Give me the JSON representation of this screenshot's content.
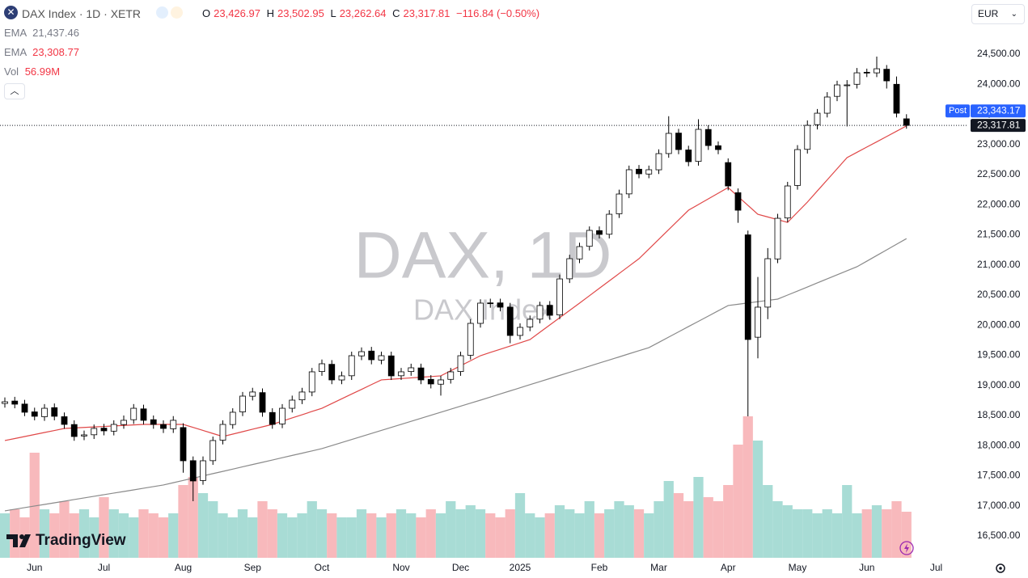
{
  "header": {
    "symbol": "DAX Index · 1D · XETR",
    "ohlc": [
      {
        "key": "O",
        "value": "23,426.97"
      },
      {
        "key": "H",
        "value": "23,502.95"
      },
      {
        "key": "L",
        "value": "23,262.64"
      },
      {
        "key": "C",
        "value": "23,317.81"
      }
    ],
    "change": "−116.84 (−0.50%)"
  },
  "currency": "EUR",
  "watermark": {
    "title": "DAX, 1D",
    "subtitle": "DAX Index"
  },
  "brand": "TradingView",
  "chart_data": {
    "type": "candlestick",
    "categories": [
      null,
      null,
      null,
      "Jun",
      null,
      null,
      null,
      null,
      null,
      null,
      "Jul",
      null,
      null,
      null,
      null,
      null,
      null,
      null,
      "Aug",
      null,
      null,
      null,
      null,
      null,
      null,
      "Sep",
      null,
      null,
      null,
      null,
      null,
      null,
      "Oct",
      null,
      null,
      null,
      null,
      null,
      null,
      null,
      "Nov",
      null,
      null,
      null,
      null,
      null,
      "Dec",
      null,
      null,
      null,
      null,
      null,
      "2025",
      null,
      null,
      null,
      null,
      null,
      null,
      null,
      "Feb",
      null,
      null,
      null,
      null,
      null,
      "Mar",
      null,
      null,
      null,
      null,
      null,
      null,
      "Apr",
      null,
      null,
      null,
      null,
      null,
      null,
      "May",
      null,
      null,
      null,
      null,
      null,
      null,
      "Jun",
      null,
      null,
      null,
      null,
      null,
      null,
      "Jul"
    ],
    "open": [
      18700,
      18740,
      18690,
      18560,
      18480,
      18630,
      18480,
      18350,
      18160,
      18180,
      18290,
      18240,
      18350,
      18430,
      18610,
      18430,
      18350,
      18280,
      18300,
      17750,
      17420,
      17750,
      18090,
      18350,
      18560,
      18820,
      18880,
      18550,
      18360,
      18620,
      18760,
      18890,
      19230,
      19350,
      19090,
      19160,
      19490,
      19570,
      19420,
      19490,
      19160,
      19230,
      19290,
      19100,
      19020,
      19100,
      19230,
      19500,
      20030,
      20370,
      20370,
      20300,
      19830,
      19970,
      20100,
      20330,
      20170,
      20770,
      21100,
      21310,
      21570,
      21510,
      21850,
      22180,
      22590,
      22510,
      22580,
      22850,
      23190,
      22910,
      22720,
      23250,
      22980,
      22700,
      22200,
      21500,
      19800,
      20300,
      21100,
      21780,
      22320,
      22920,
      23330,
      23520,
      23800,
      23990,
      24000,
      24200,
      24190,
      24250,
      24000,
      23426.97,
      null,
      null,
      null
    ],
    "high": [
      18800,
      18810,
      18760,
      18630,
      18690,
      18700,
      18550,
      18420,
      18250,
      18350,
      18360,
      18420,
      18500,
      18690,
      18680,
      18500,
      18420,
      18490,
      18370,
      17820,
      17820,
      18150,
      18420,
      18620,
      18890,
      18960,
      18950,
      18620,
      18690,
      18830,
      18960,
      19290,
      19430,
      19420,
      19230,
      19560,
      19630,
      19640,
      19560,
      19560,
      19290,
      19360,
      19360,
      19170,
      19160,
      19290,
      19560,
      20100,
      20430,
      20440,
      20440,
      20370,
      20030,
      20160,
      20390,
      20400,
      20840,
      21170,
      21370,
      21640,
      21640,
      21910,
      22250,
      22650,
      22660,
      22650,
      22920,
      23470,
      23260,
      22980,
      23420,
      23320,
      23050,
      22770,
      22270,
      21570,
      20800,
      21280,
      21850,
      22380,
      22990,
      23400,
      23590,
      23870,
      24060,
      24070,
      24270,
      24260,
      24460,
      24320,
      24130,
      23502.95,
      null,
      null,
      null
    ],
    "low": [
      18630,
      18620,
      18490,
      18420,
      18410,
      18420,
      18280,
      18080,
      18090,
      18110,
      18170,
      18170,
      18280,
      18360,
      18350,
      18280,
      18210,
      18210,
      17550,
      17077,
      17350,
      17680,
      18020,
      18280,
      18490,
      18750,
      18480,
      18280,
      18290,
      18550,
      18690,
      18820,
      19160,
      19020,
      19020,
      19090,
      19420,
      19350,
      19350,
      19090,
      19090,
      19160,
      19020,
      18950,
      18830,
      19030,
      19160,
      19430,
      19960,
      20290,
      20230,
      19700,
      19760,
      19900,
      20030,
      20090,
      20100,
      20700,
      21030,
      21240,
      21440,
      21440,
      21780,
      22110,
      22440,
      22440,
      22510,
      22780,
      22840,
      22640,
      22650,
      22910,
      22840,
      22240,
      21700,
      18487,
      19450,
      20100,
      21030,
      21710,
      22250,
      22850,
      23250,
      23450,
      23720,
      23300,
      23930,
      24120,
      24120,
      23930,
      23450,
      23262.64,
      null,
      null,
      null
    ],
    "close": [
      18728,
      18688,
      18554,
      18487,
      18620,
      18487,
      18352,
      18151,
      18178,
      18285,
      18245,
      18352,
      18420,
      18620,
      18420,
      18352,
      18285,
      18420,
      17748,
      17413,
      17748,
      18084,
      18352,
      18554,
      18822,
      18890,
      18554,
      18352,
      18620,
      18755,
      18890,
      19225,
      19359,
      19091,
      19158,
      19493,
      19560,
      19426,
      19493,
      19158,
      19225,
      19292,
      19091,
      19024,
      19091,
      19225,
      19493,
      20030,
      20366,
      20366,
      20299,
      19829,
      19963,
      20097,
      20326,
      20164,
      20768,
      21104,
      21305,
      21574,
      21507,
      21842,
      22178,
      22581,
      22514,
      22581,
      22849,
      23185,
      22916,
      22715,
      23252,
      22983,
      22916,
      22312,
      21909,
      19762,
      20299,
      21104,
      21775,
      22312,
      22916,
      23319,
      23520,
      23789,
      23990,
      23990,
      24191,
      24191,
      24258,
      24057,
      23520,
      23317.81,
      null,
      null,
      null
    ],
    "close_label": "23,317.81",
    "up_color": "#ffffff",
    "down_color": "#000000",
    "wick_color": "#000000",
    "series": [
      {
        "name": "EMA",
        "color": "#8a8a8a",
        "value_label": "21,437.46",
        "values": [
          16916,
          16943,
          16970,
          16997,
          17023,
          17050,
          17077,
          17104,
          17131,
          17158,
          17185,
          17212,
          17238,
          17265,
          17292,
          17319,
          17346,
          17384,
          17421,
          17459,
          17497,
          17535,
          17572,
          17610,
          17648,
          17686,
          17723,
          17761,
          17799,
          17837,
          17874,
          17912,
          17950,
          18000,
          18051,
          18101,
          18152,
          18202,
          18252,
          18302,
          18353,
          18403,
          18453,
          18504,
          18554,
          18604,
          18655,
          18705,
          18755,
          18806,
          18858,
          18909,
          18960,
          19012,
          19063,
          19114,
          19166,
          19217,
          19268,
          19320,
          19371,
          19422,
          19473,
          19525,
          19576,
          19627,
          19714,
          19802,
          19889,
          19977,
          20064,
          20151,
          20239,
          20326,
          20347,
          20369,
          20390,
          20412,
          20433,
          20500,
          20567,
          20634,
          20702,
          20769,
          20836,
          20903,
          20970,
          21063,
          21157,
          21250,
          21344,
          21437.46,
          null,
          null,
          null
        ]
      },
      {
        "name": "EMA",
        "color": "#e04848",
        "value_label": "23,308.77",
        "values": [
          18084,
          18117,
          18151,
          18184,
          18218,
          18251,
          18285,
          18293,
          18302,
          18310,
          18318,
          18327,
          18335,
          18344,
          18352,
          18352,
          18352,
          18352,
          18352,
          18302,
          18252,
          18201,
          18151,
          18191,
          18231,
          18272,
          18312,
          18352,
          18406,
          18460,
          18513,
          18567,
          18620,
          18699,
          18777,
          18856,
          18934,
          19013,
          19091,
          19102,
          19113,
          19125,
          19136,
          19147,
          19158,
          19242,
          19326,
          19409,
          19493,
          19547,
          19600,
          19654,
          19707,
          19761,
          19882,
          20003,
          20124,
          20245,
          20366,
          20489,
          20612,
          20735,
          20858,
          20981,
          21104,
          21265,
          21426,
          21587,
          21748,
          21909,
          22003,
          22097,
          22191,
          22285,
          22137,
          21990,
          21842,
          21797,
          21753,
          21708,
          21876,
          22044,
          22229,
          22413,
          22598,
          22782,
          22870,
          22958,
          23045,
          23133,
          23221,
          23308.77,
          null,
          null,
          null
        ]
      }
    ],
    "volume": {
      "name": "Vol",
      "value_label": "56.99M",
      "up_color": "#a8dcd5",
      "down_color": "#f8b9bc",
      "ylim": [
        0,
        240
      ],
      "values": [
        55,
        60,
        50,
        130,
        60,
        55,
        70,
        55,
        60,
        50,
        75,
        60,
        55,
        50,
        60,
        55,
        50,
        55,
        90,
        100,
        80,
        70,
        55,
        50,
        60,
        50,
        70,
        60,
        55,
        50,
        55,
        70,
        60,
        55,
        50,
        50,
        60,
        55,
        50,
        55,
        60,
        55,
        50,
        60,
        55,
        70,
        60,
        65,
        60,
        55,
        50,
        60,
        80,
        55,
        50,
        55,
        65,
        60,
        55,
        70,
        55,
        60,
        70,
        65,
        60,
        55,
        70,
        95,
        80,
        70,
        100,
        75,
        70,
        90,
        140,
        175,
        145,
        90,
        70,
        65,
        60,
        60,
        55,
        60,
        55,
        90,
        55,
        60,
        65,
        60,
        70,
        56.99,
        null,
        null,
        null
      ]
    },
    "post": {
      "name": "Post",
      "value": 23343.17,
      "value_label": "23,343.17",
      "color": "#2962ff"
    },
    "ylim": [
      16137,
      25400
    ],
    "yticks": [
      {
        "value": 16500,
        "label": "16,500.00"
      },
      {
        "value": 17000,
        "label": "17,000.00"
      },
      {
        "value": 17500,
        "label": "17,500.00"
      },
      {
        "value": 18000,
        "label": "18,000.00"
      },
      {
        "value": 18500,
        "label": "18,500.00"
      },
      {
        "value": 19000,
        "label": "19,000.00"
      },
      {
        "value": 19500,
        "label": "19,500.00"
      },
      {
        "value": 20000,
        "label": "20,000.00"
      },
      {
        "value": 20500,
        "label": "20,500.00"
      },
      {
        "value": 21000,
        "label": "21,000.00"
      },
      {
        "value": 21500,
        "label": "21,500.00"
      },
      {
        "value": 22000,
        "label": "22,000.00"
      },
      {
        "value": 22500,
        "label": "22,500.00"
      },
      {
        "value": 23000,
        "label": "23,000.00"
      },
      {
        "value": 23500,
        "label": "23,500.00"
      },
      {
        "value": 24000,
        "label": "24,000.00"
      },
      {
        "value": 24500,
        "label": "24,500.00"
      }
    ],
    "grid": false
  }
}
